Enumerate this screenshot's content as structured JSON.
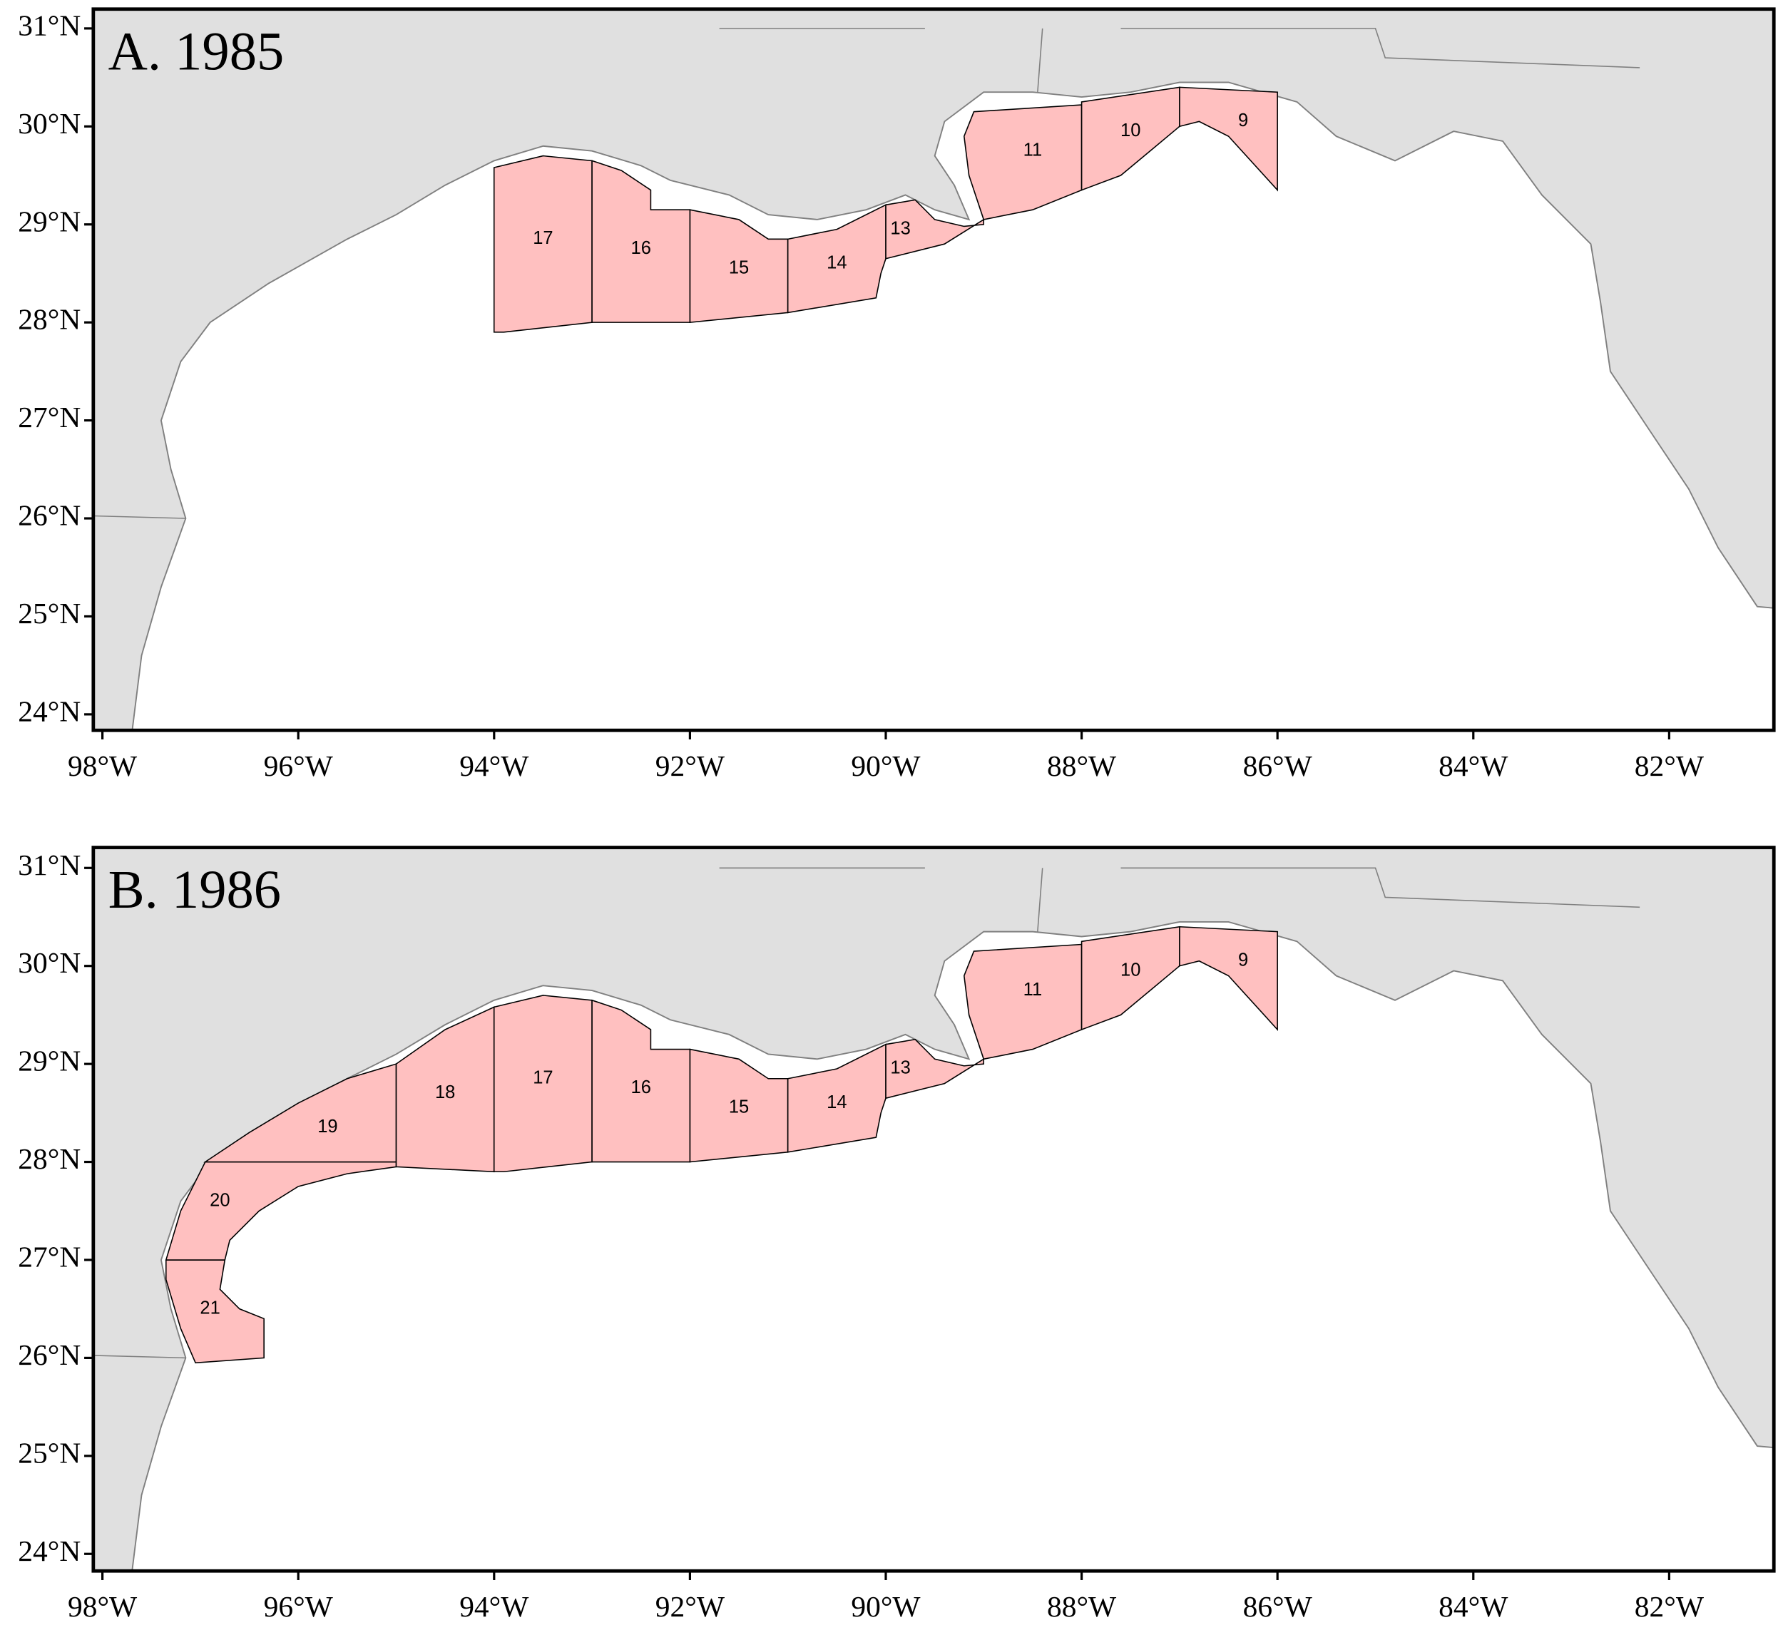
{
  "panels": [
    {
      "title": "A. 1985",
      "zones": [
        "17",
        "16",
        "15",
        "14",
        "13",
        "11",
        "10",
        "9"
      ]
    },
    {
      "title": "B. 1986",
      "zones": [
        "21",
        "20",
        "19",
        "18",
        "17",
        "16",
        "15",
        "14",
        "13",
        "11",
        "10",
        "9"
      ]
    }
  ],
  "x_axis_labels": [
    "98°W",
    "96°W",
    "94°W",
    "92°W",
    "90°W",
    "88°W",
    "86°W",
    "84°W",
    "82°W"
  ],
  "y_axis_labels": [
    "31°N",
    "30°N",
    "29°N",
    "28°N",
    "27°N",
    "26°N",
    "25°N",
    "24°N"
  ]
}
